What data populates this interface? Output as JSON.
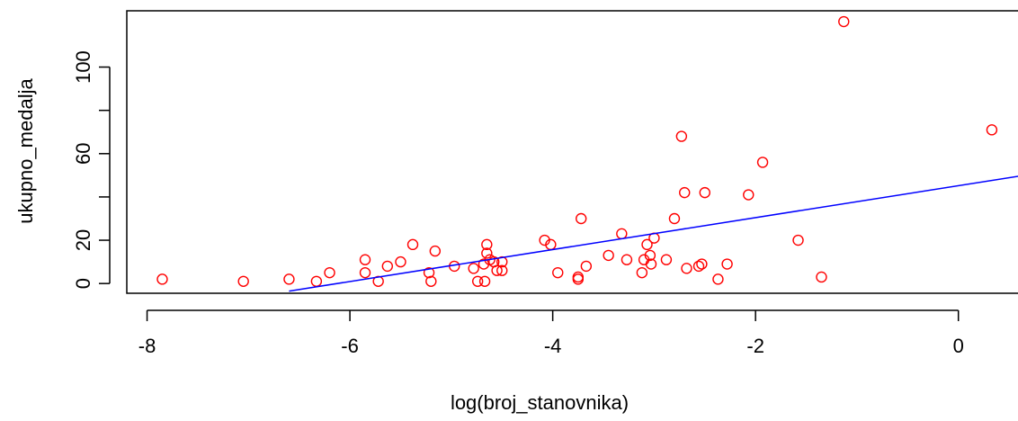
{
  "chart_data": {
    "type": "scatter",
    "title": "",
    "xlabel": "log(broj_stanovnika)",
    "ylabel": "ukupno_medalja",
    "xlim": [
      -8.2,
      0.65
    ],
    "ylim": [
      -4.5,
      126
    ],
    "xticks": [
      -8,
      -6,
      -4,
      -2,
      0
    ],
    "xtick_labels": [
      "-8",
      "-6",
      "-4",
      "-2",
      "0"
    ],
    "yticks": [
      0,
      20,
      60,
      100
    ],
    "ytick_labels": [
      "0",
      "20",
      "60",
      "100"
    ],
    "grid": false,
    "colors": {
      "points": "#ff0000",
      "regression_line": "#0000ff",
      "axes": "#000000"
    },
    "regression_line": {
      "x": [
        -6.6,
        0.65
      ],
      "y": [
        -3.5,
        50
      ]
    },
    "points": [
      [
        -7.85,
        2
      ],
      [
        -7.05,
        1
      ],
      [
        -6.6,
        2
      ],
      [
        -6.33,
        1
      ],
      [
        -6.2,
        5
      ],
      [
        -5.85,
        11
      ],
      [
        -5.85,
        5
      ],
      [
        -5.72,
        1
      ],
      [
        -5.63,
        8
      ],
      [
        -5.5,
        10
      ],
      [
        -5.38,
        18
      ],
      [
        -5.22,
        5
      ],
      [
        -5.2,
        1
      ],
      [
        -5.16,
        15
      ],
      [
        -4.97,
        8
      ],
      [
        -4.78,
        7
      ],
      [
        -4.74,
        1
      ],
      [
        -4.68,
        9
      ],
      [
        -4.67,
        1
      ],
      [
        -4.65,
        18
      ],
      [
        -4.65,
        14
      ],
      [
        -4.62,
        11
      ],
      [
        -4.58,
        10
      ],
      [
        -4.55,
        6
      ],
      [
        -4.5,
        6
      ],
      [
        -4.5,
        10
      ],
      [
        -4.08,
        20
      ],
      [
        -4.02,
        18
      ],
      [
        -3.95,
        5
      ],
      [
        -3.75,
        2
      ],
      [
        -3.75,
        3
      ],
      [
        -3.72,
        30
      ],
      [
        -3.67,
        8
      ],
      [
        -3.45,
        13
      ],
      [
        -3.32,
        23
      ],
      [
        -3.27,
        11
      ],
      [
        -3.12,
        5
      ],
      [
        -3.1,
        11
      ],
      [
        -3.07,
        18
      ],
      [
        -3.04,
        13
      ],
      [
        -3.03,
        9
      ],
      [
        -3.0,
        21
      ],
      [
        -2.88,
        11
      ],
      [
        -2.8,
        30
      ],
      [
        -2.73,
        68
      ],
      [
        -2.7,
        42
      ],
      [
        -2.68,
        7
      ],
      [
        -2.56,
        8
      ],
      [
        -2.53,
        9
      ],
      [
        -2.5,
        42
      ],
      [
        -2.37,
        2
      ],
      [
        -2.28,
        9
      ],
      [
        -2.07,
        41
      ],
      [
        -1.93,
        56
      ],
      [
        -1.58,
        20
      ],
      [
        -1.35,
        3
      ],
      [
        -1.13,
        121
      ],
      [
        0.33,
        71
      ]
    ]
  }
}
